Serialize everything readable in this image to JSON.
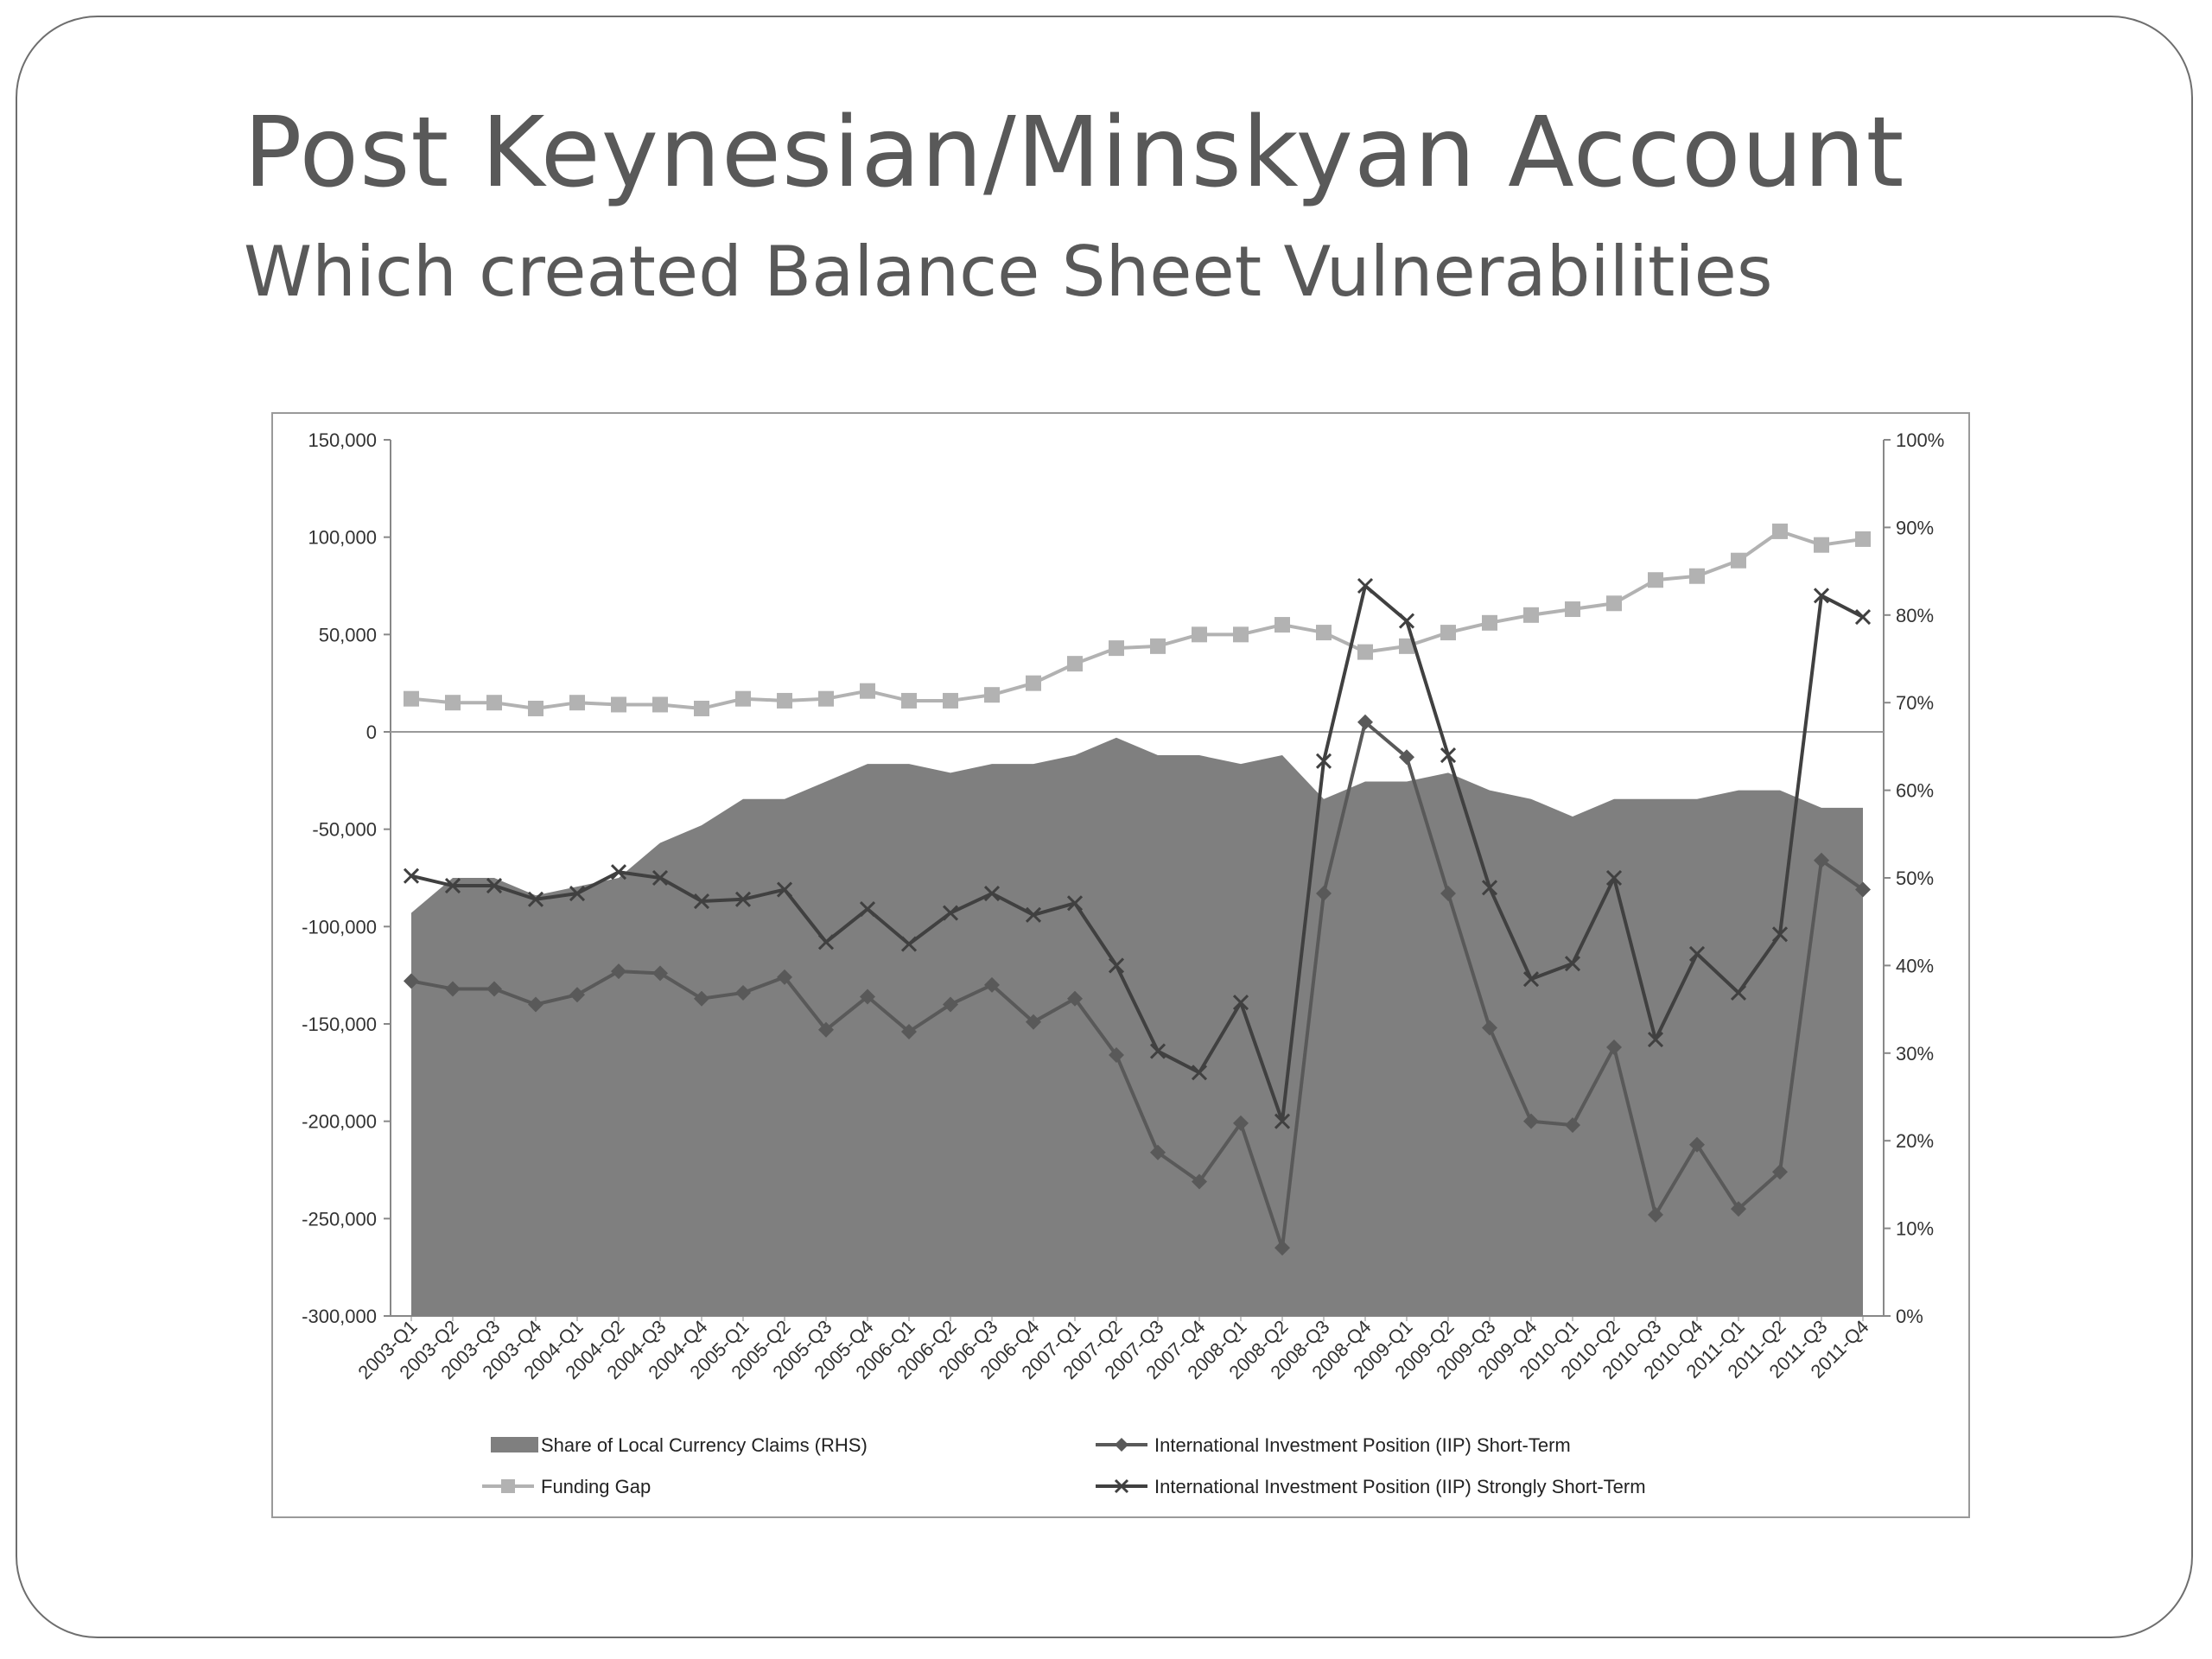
{
  "slide": {
    "title": "Post Keynesian/Minskyan Account",
    "subtitle": "Which created Balance Sheet Vulnerabilities"
  },
  "chart_data": {
    "type": "line",
    "categories": [
      "2003-Q1",
      "2003-Q2",
      "2003-Q3",
      "2003-Q4",
      "2004-Q1",
      "2004-Q2",
      "2004-Q3",
      "2004-Q4",
      "2005-Q1",
      "2005-Q2",
      "2005-Q3",
      "2005-Q4",
      "2006-Q1",
      "2006-Q2",
      "2006-Q3",
      "2006-Q4",
      "2007-Q1",
      "2007-Q2",
      "2007-Q3",
      "2007-Q4",
      "2008-Q1",
      "2008-Q2",
      "2008-Q3",
      "2008-Q4",
      "2009-Q1",
      "2009-Q2",
      "2009-Q3",
      "2009-Q4",
      "2010-Q1",
      "2010-Q2",
      "2010-Q3",
      "2010-Q4",
      "2011-Q1",
      "2011-Q2",
      "2011-Q3",
      "2011-Q4"
    ],
    "y_left": {
      "ylim": [
        -300000,
        150000
      ],
      "ticks": [
        "150,000",
        "100,000",
        "50,000",
        "0",
        "-50,000",
        "-100,000",
        "-150,000",
        "-200,000",
        "-250,000",
        "-300,000"
      ]
    },
    "y_right": {
      "ylim": [
        0,
        100
      ],
      "ticks": [
        "100%",
        "90%",
        "80%",
        "70%",
        "60%",
        "50%",
        "40%",
        "30%",
        "20%",
        "10%",
        "0%"
      ]
    },
    "series": [
      {
        "name": "Share of Local Currency Claims (RHS)",
        "type": "area",
        "axis": "right",
        "color": "#7f7f7f",
        "values": [
          46,
          50,
          50,
          48,
          49,
          50,
          54,
          56,
          59,
          59,
          61,
          63,
          63,
          62,
          63,
          63,
          64,
          66,
          64,
          64,
          63,
          64,
          59,
          61,
          61,
          62,
          60,
          59,
          57,
          59,
          59,
          59,
          60,
          60,
          58,
          58
        ]
      },
      {
        "name": "International Investment Position (IIP) Short-Term",
        "type": "line",
        "axis": "left",
        "marker": "diamond",
        "color": "#595959",
        "values": [
          -128000,
          -132000,
          -132000,
          -140000,
          -135000,
          -123000,
          -124000,
          -137000,
          -134000,
          -126000,
          -153000,
          -136000,
          -154000,
          -140000,
          -130000,
          -149000,
          -137000,
          -166000,
          -216000,
          -231000,
          -201000,
          -265000,
          -83000,
          5000,
          -13000,
          -83000,
          -152000,
          -200000,
          -202000,
          -162000,
          -248000,
          -212000,
          -245000,
          -226000,
          -66000,
          -81000
        ]
      },
      {
        "name": "Funding Gap",
        "type": "line",
        "axis": "left",
        "marker": "square",
        "color": "#b2b2b2",
        "values": [
          17000,
          15000,
          15000,
          12000,
          15000,
          14000,
          14000,
          12000,
          17000,
          16000,
          17000,
          21000,
          16000,
          16000,
          19000,
          25000,
          35000,
          43000,
          44000,
          50000,
          50000,
          55000,
          51000,
          41000,
          44000,
          51000,
          56000,
          60000,
          63000,
          66000,
          78000,
          80000,
          88000,
          103000,
          96000,
          99000
        ]
      },
      {
        "name": "International Investment Position (IIP) Strongly Short-Term",
        "type": "line",
        "axis": "left",
        "marker": "x",
        "color": "#404040",
        "values": [
          -74000,
          -79000,
          -79000,
          -86000,
          -83000,
          -72000,
          -75000,
          -87000,
          -86000,
          -81000,
          -108000,
          -91000,
          -109000,
          -93000,
          -83000,
          -94000,
          -88000,
          -120000,
          -164000,
          -175000,
          -139000,
          -200000,
          -15000,
          75000,
          57000,
          -12000,
          -80000,
          -127000,
          -119000,
          -75000,
          -158000,
          -114000,
          -134000,
          -104000,
          70000,
          59000
        ]
      }
    ],
    "legend_position": "bottom",
    "grid": false
  }
}
